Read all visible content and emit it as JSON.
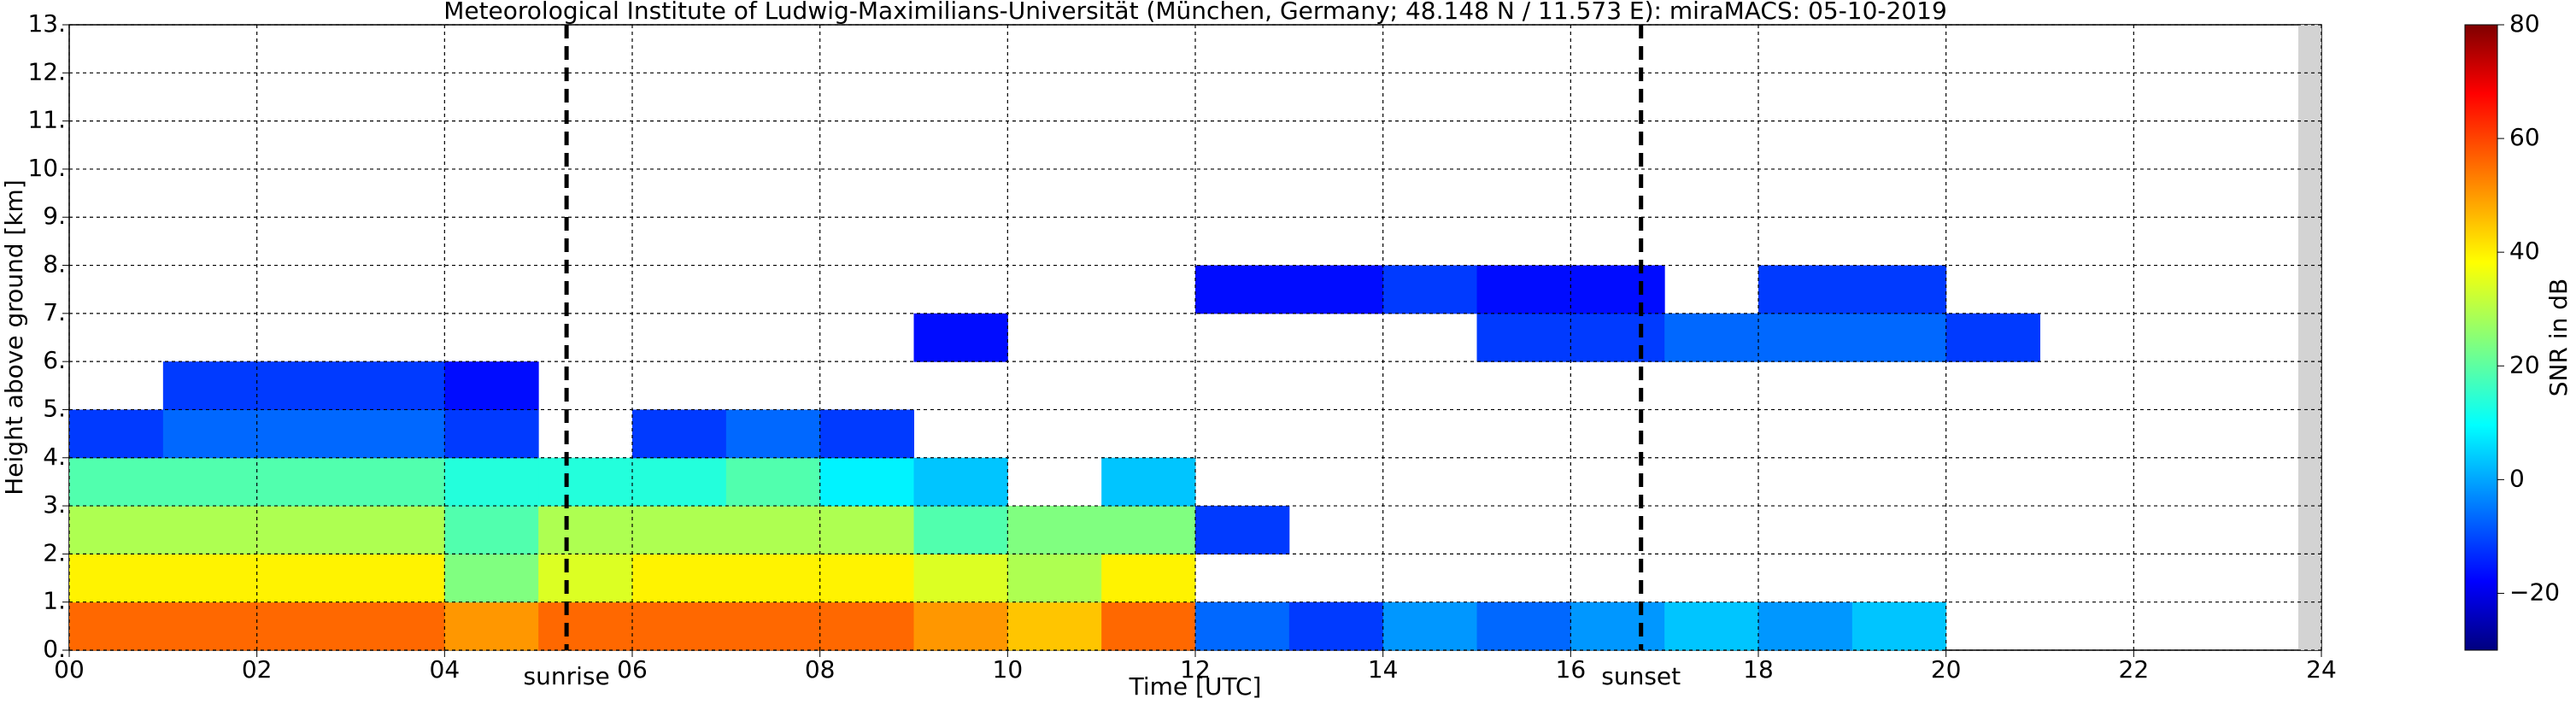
{
  "chart_data": {
    "type": "heatmap",
    "title": "Meteorological Institute of Ludwig-Maximilians-Universität (München, Germany; 48.148 N / 11.573 E):    miraMACS: 05-10-2019",
    "xlabel": "Time [UTC]",
    "ylabel": "Height above ground [km]",
    "colorbar_label": "SNR in dB",
    "colormap": "jet",
    "x_edges": [
      0,
      1,
      2,
      3,
      4,
      5,
      6,
      7,
      8,
      9,
      10,
      11,
      12,
      13,
      14,
      15,
      16,
      17,
      18,
      19,
      20,
      21,
      22,
      23,
      24
    ],
    "y_edges": [
      0,
      1,
      2,
      3,
      4,
      5,
      6,
      7,
      8,
      9,
      10,
      11,
      12,
      13
    ],
    "z": [
      [
        55,
        55,
        55,
        55,
        50,
        55,
        55,
        55,
        55,
        50,
        45,
        55,
        -5,
        -10,
        0,
        -5,
        0,
        5,
        0,
        5,
        null,
        null,
        null,
        null
      ],
      [
        40,
        40,
        40,
        40,
        25,
        35,
        40,
        40,
        40,
        35,
        30,
        40,
        null,
        null,
        null,
        null,
        null,
        null,
        null,
        null,
        null,
        null,
        null,
        null
      ],
      [
        30,
        30,
        30,
        30,
        20,
        30,
        30,
        30,
        30,
        20,
        25,
        25,
        -10,
        null,
        null,
        null,
        null,
        null,
        null,
        null,
        null,
        null,
        null,
        null
      ],
      [
        20,
        20,
        20,
        20,
        15,
        15,
        15,
        20,
        10,
        5,
        null,
        5,
        null,
        null,
        null,
        null,
        null,
        null,
        null,
        null,
        null,
        null,
        null,
        null
      ],
      [
        -10,
        -5,
        -5,
        -5,
        -10,
        null,
        -10,
        -5,
        -10,
        null,
        null,
        null,
        null,
        null,
        null,
        null,
        null,
        null,
        null,
        null,
        null,
        null,
        null,
        null
      ],
      [
        null,
        -10,
        -10,
        -10,
        -15,
        null,
        null,
        null,
        null,
        null,
        null,
        null,
        null,
        null,
        null,
        null,
        null,
        null,
        null,
        null,
        null,
        null,
        null,
        null
      ],
      [
        null,
        null,
        null,
        null,
        null,
        null,
        null,
        null,
        null,
        -15,
        null,
        null,
        null,
        null,
        null,
        -10,
        -10,
        -5,
        -5,
        -5,
        -10,
        null,
        null,
        null
      ],
      [
        null,
        null,
        null,
        null,
        null,
        null,
        null,
        null,
        null,
        null,
        null,
        null,
        -15,
        -15,
        -10,
        -15,
        -15,
        null,
        -10,
        -10,
        null,
        null,
        null,
        null
      ],
      [
        null,
        null,
        null,
        null,
        null,
        null,
        null,
        null,
        null,
        null,
        null,
        null,
        null,
        null,
        null,
        null,
        null,
        null,
        null,
        null,
        null,
        null,
        null,
        null
      ],
      [
        null,
        null,
        null,
        null,
        null,
        null,
        null,
        null,
        null,
        null,
        null,
        null,
        null,
        null,
        null,
        null,
        null,
        null,
        null,
        null,
        null,
        null,
        null,
        null
      ],
      [
        null,
        null,
        null,
        null,
        null,
        null,
        null,
        null,
        null,
        null,
        null,
        null,
        null,
        null,
        null,
        null,
        null,
        null,
        null,
        null,
        null,
        null,
        null,
        null
      ],
      [
        null,
        null,
        null,
        null,
        null,
        null,
        null,
        null,
        null,
        null,
        null,
        null,
        null,
        null,
        null,
        null,
        null,
        null,
        null,
        null,
        null,
        null,
        null,
        null
      ],
      [
        null,
        null,
        null,
        null,
        null,
        null,
        null,
        null,
        null,
        null,
        null,
        null,
        null,
        null,
        null,
        null,
        null,
        null,
        null,
        null,
        null,
        null,
        null,
        null
      ]
    ],
    "xlim": [
      0,
      24
    ],
    "ylim": [
      0,
      13
    ],
    "clim": [
      -30,
      80
    ],
    "xticks": [
      {
        "value": 0,
        "label": "00"
      },
      {
        "value": 2,
        "label": "02"
      },
      {
        "value": 4,
        "label": "04"
      },
      {
        "value": 6,
        "label": "06"
      },
      {
        "value": 8,
        "label": "08"
      },
      {
        "value": 10,
        "label": "10"
      },
      {
        "value": 12,
        "label": "12"
      },
      {
        "value": 14,
        "label": "14"
      },
      {
        "value": 16,
        "label": "16"
      },
      {
        "value": 18,
        "label": "18"
      },
      {
        "value": 20,
        "label": "20"
      },
      {
        "value": 22,
        "label": "22"
      },
      {
        "value": 24,
        "label": "24"
      }
    ],
    "yticks": [
      {
        "value": 0,
        "label": "0."
      },
      {
        "value": 1,
        "label": "1."
      },
      {
        "value": 2,
        "label": "2."
      },
      {
        "value": 3,
        "label": "3."
      },
      {
        "value": 4,
        "label": "4."
      },
      {
        "value": 5,
        "label": "5."
      },
      {
        "value": 6,
        "label": "6."
      },
      {
        "value": 7,
        "label": "7."
      },
      {
        "value": 8,
        "label": "8."
      },
      {
        "value": 9,
        "label": "9."
      },
      {
        "value": 10,
        "label": "10."
      },
      {
        "value": 11,
        "label": "11."
      },
      {
        "value": 12,
        "label": "12."
      },
      {
        "value": 13,
        "label": "13."
      }
    ],
    "cticks": [
      {
        "value": -20,
        "label": "−20"
      },
      0,
      20,
      40,
      60,
      80
    ],
    "events": [
      {
        "label": "sunrise",
        "time": 5.3
      },
      {
        "label": "sunset",
        "time": 16.75
      }
    ],
    "grid": true
  }
}
